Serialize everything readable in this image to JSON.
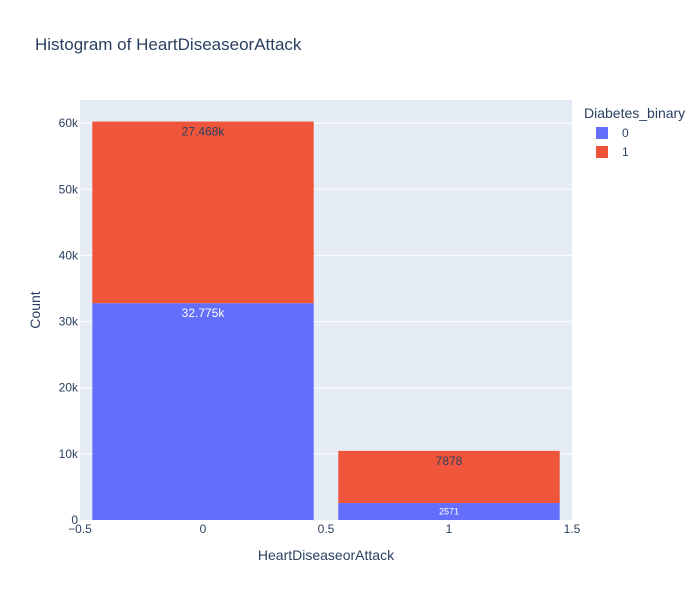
{
  "chart_data": {
    "type": "bar",
    "title": "Histogram of HeartDiseaseorAttack",
    "xlabel": "HeartDiseaseorAttack",
    "ylabel": "Count",
    "barmode": "stack",
    "categories": [
      0,
      1
    ],
    "xlim": [
      -0.5,
      1.5
    ],
    "ylim": [
      0,
      63500
    ],
    "x_ticks": [
      "−0.5",
      "0",
      "0.5",
      "1",
      "1.5"
    ],
    "x_tick_values": [
      -0.5,
      0,
      0.5,
      1,
      1.5
    ],
    "y_ticks": [
      "0",
      "10k",
      "20k",
      "30k",
      "40k",
      "50k",
      "60k"
    ],
    "y_tick_values": [
      0,
      10000,
      20000,
      30000,
      40000,
      50000,
      60000
    ],
    "legend_title": "Diabetes_binary",
    "legend_position": "right",
    "grid": true,
    "series": [
      {
        "name": "0",
        "values": [
          32775,
          2571
        ],
        "labels": [
          "32.775k",
          "2571"
        ],
        "color": "#636efa",
        "label_color": "#ffffff"
      },
      {
        "name": "1",
        "values": [
          27468,
          7878
        ],
        "labels": [
          "27.468k",
          "7878"
        ],
        "color": "#ef553b",
        "label_color": "#2a3f5f"
      }
    ],
    "plot_background": "#e5ecf6"
  }
}
